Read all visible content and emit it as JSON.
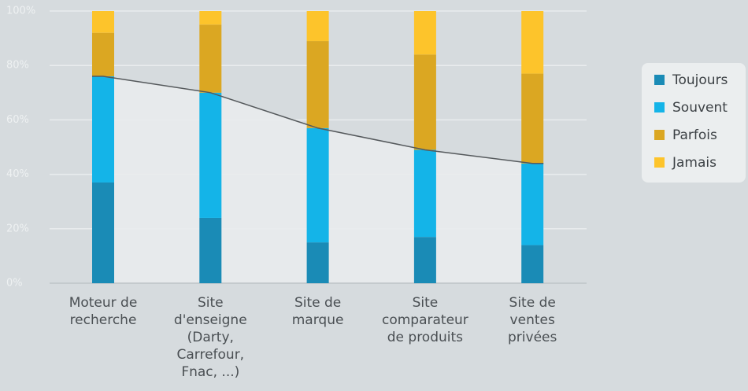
{
  "chart_data": {
    "type": "stacked-bar",
    "categories": [
      "Moteur de\nrecherche",
      "Site\nd'enseigne\n(Darty,\nCarrefour,\nFnac, ...)",
      "Site de\nmarque",
      "Site\ncomparateur\nde produits",
      "Site de\nventes\nprivées"
    ],
    "series": [
      {
        "name": "Toujours",
        "color": "#1a8bb6",
        "values": [
          37,
          24,
          15,
          17,
          14
        ]
      },
      {
        "name": "Souvent",
        "color": "#14b4e8",
        "values": [
          39,
          46,
          42,
          32,
          30
        ]
      },
      {
        "name": "Parfois",
        "color": "#dba722",
        "values": [
          16,
          25,
          32,
          35,
          33
        ]
      },
      {
        "name": "Jamais",
        "color": "#fdc42b",
        "values": [
          8,
          5,
          11,
          16,
          23
        ]
      }
    ],
    "ylim": [
      0,
      100
    ],
    "yticks": [
      {
        "value": 0,
        "label": "0%"
      },
      {
        "value": 20,
        "label": "20%"
      },
      {
        "value": 40,
        "label": "40%"
      },
      {
        "value": 60,
        "label": "60%"
      },
      {
        "value": 80,
        "label": "80%"
      },
      {
        "value": 100,
        "label": "100%"
      }
    ],
    "grid": true,
    "legend": "right"
  }
}
